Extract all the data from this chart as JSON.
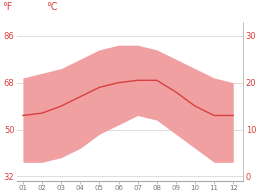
{
  "months": [
    1,
    2,
    3,
    4,
    5,
    6,
    7,
    8,
    9,
    10,
    11,
    12
  ],
  "month_labels": [
    "01",
    "02",
    "03",
    "04",
    "05",
    "06",
    "07",
    "08",
    "09",
    "10",
    "11",
    "12"
  ],
  "mean_temp_c": [
    13.0,
    13.5,
    15.0,
    17.0,
    19.0,
    20.0,
    20.5,
    20.5,
    18.0,
    15.0,
    13.0,
    13.0
  ],
  "max_temp_c": [
    21,
    22,
    23,
    25,
    27,
    28,
    28,
    27,
    25,
    23,
    21,
    20
  ],
  "min_temp_c": [
    3,
    3,
    4,
    6,
    9,
    11,
    13,
    12,
    9,
    6,
    3,
    3
  ],
  "ylim": [
    -1,
    33
  ],
  "yticks_c": [
    0,
    10,
    20,
    30
  ],
  "yticks_f": [
    32,
    50,
    68,
    86
  ],
  "line_color": "#d94040",
  "fill_color": "#f0a0a0",
  "axis_color": "#d94040",
  "grid_color": "#d0d0d0",
  "bg_color": "#ffffff",
  "label_f": "°F",
  "label_c": "°C",
  "figsize": [
    2.59,
    1.94
  ],
  "dpi": 100
}
